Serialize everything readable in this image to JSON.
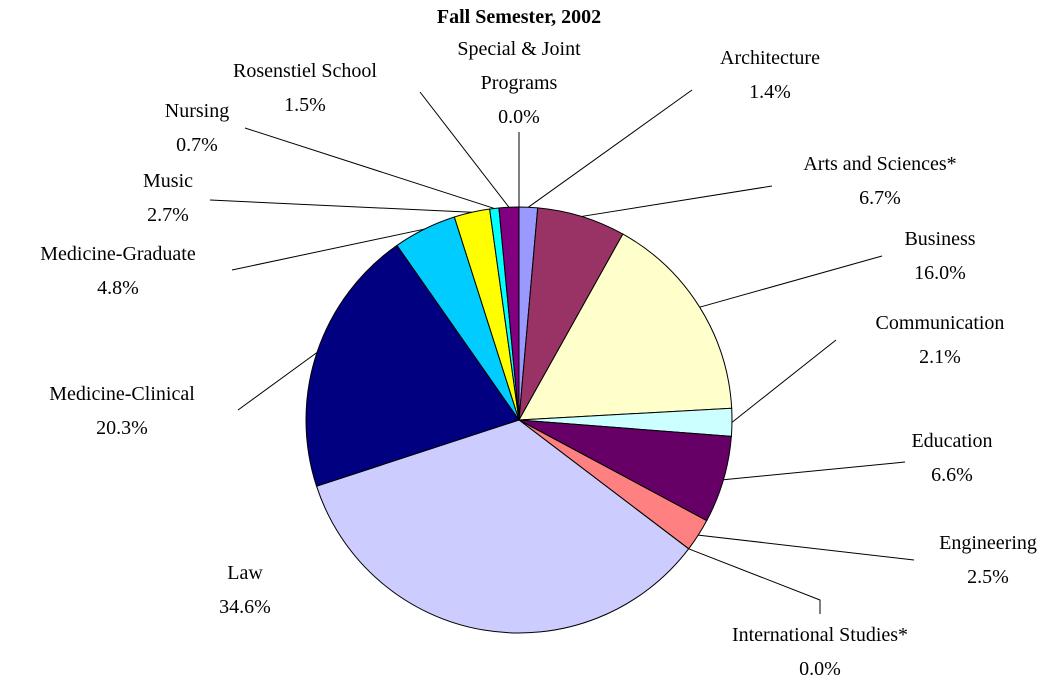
{
  "chart_data": {
    "type": "pie",
    "title": "Fall Semester, 2002",
    "categories": [
      "Architecture",
      "Arts and Sciences*",
      "Business",
      "Communication",
      "Education",
      "Engineering",
      "International Studies*",
      "Law",
      "Medicine-Clinical",
      "Medicine-Graduate",
      "Music",
      "Nursing",
      "Rosenstiel School",
      "Special & Joint Programs"
    ],
    "values": [
      1.4,
      6.7,
      16.0,
      2.1,
      6.6,
      2.5,
      0.0,
      34.6,
      20.3,
      4.8,
      2.7,
      0.7,
      1.5,
      0.0
    ],
    "value_labels": [
      "1.4%",
      "6.7%",
      "16.0%",
      "2.1%",
      "6.6%",
      "2.5%",
      "0.0%",
      "34.6%",
      "20.3%",
      "4.8%",
      "2.7%",
      "0.7%",
      "1.5%",
      "0.0%"
    ],
    "colors": [
      "#9999ff",
      "#993366",
      "#ffffcc",
      "#ccffff",
      "#660066",
      "#ff8080",
      "#0066cc",
      "#ccccff",
      "#000080",
      "#00ccff",
      "#ffff00",
      "#00ffff",
      "#800080",
      "#ff00ff"
    ]
  }
}
